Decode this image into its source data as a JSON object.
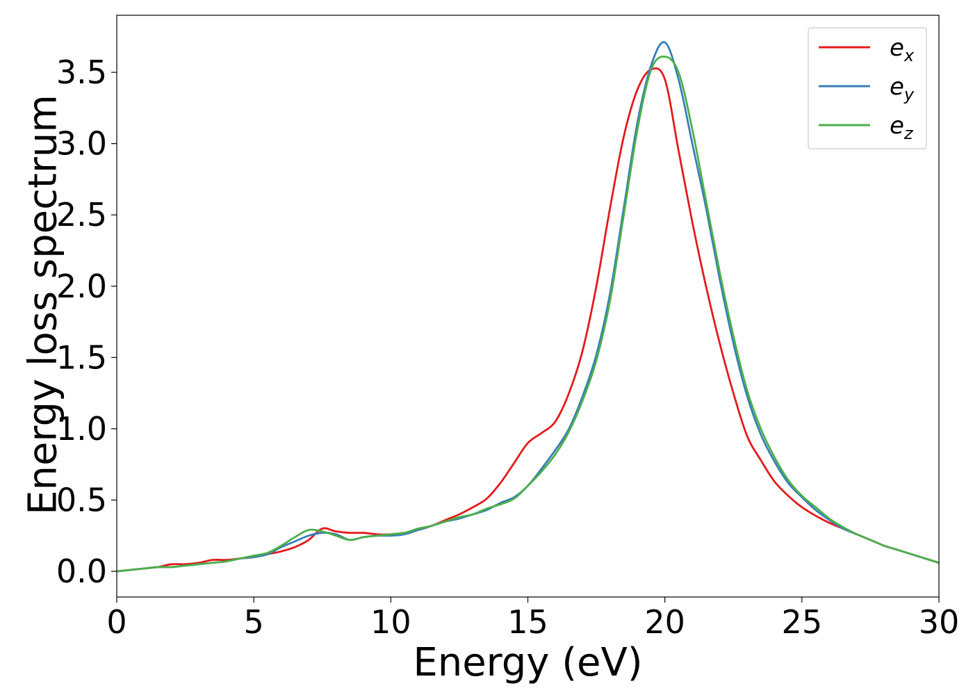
{
  "chart_data": {
    "type": "line",
    "title": "",
    "xlabel": "Energy (eV)",
    "ylabel": "Energy loss spectrum",
    "xlim": [
      0,
      30
    ],
    "ylim": [
      -0.18,
      3.9
    ],
    "xticks": [
      0,
      5,
      10,
      15,
      20,
      25,
      30
    ],
    "xtick_labels": [
      "0",
      "5",
      "10",
      "15",
      "20",
      "25",
      "30"
    ],
    "yticks": [
      0.0,
      0.5,
      1.0,
      1.5,
      2.0,
      2.5,
      3.0,
      3.5
    ],
    "ytick_labels": [
      "0.0",
      "0.5",
      "1.0",
      "1.5",
      "2.0",
      "2.5",
      "3.0",
      "3.5"
    ],
    "grid": false,
    "legend_position": "top-right",
    "series": [
      {
        "name": "e_x",
        "legend_base": "e",
        "legend_sub": "x",
        "color": "#e41a1c",
        "x": [
          0,
          1,
          1.5,
          2,
          2.5,
          3,
          3.5,
          4,
          4.5,
          5,
          5.5,
          6,
          6.5,
          7,
          7.5,
          8,
          8.5,
          9,
          9.5,
          10,
          10.5,
          11,
          11.5,
          12,
          12.5,
          13,
          13.5,
          14,
          14.5,
          15,
          15.5,
          16,
          16.5,
          17,
          17.5,
          18,
          18.5,
          19,
          19.5,
          20,
          20.5,
          21,
          21.5,
          22,
          22.5,
          23,
          23.5,
          24,
          24.5,
          25,
          25.5,
          26,
          26.5,
          27,
          27.5,
          28,
          28.5,
          29,
          29.5,
          30
        ],
        "y": [
          0.0,
          0.02,
          0.03,
          0.05,
          0.05,
          0.06,
          0.08,
          0.08,
          0.09,
          0.1,
          0.12,
          0.14,
          0.17,
          0.22,
          0.3,
          0.28,
          0.27,
          0.27,
          0.26,
          0.26,
          0.27,
          0.29,
          0.32,
          0.36,
          0.4,
          0.45,
          0.51,
          0.62,
          0.76,
          0.9,
          0.97,
          1.05,
          1.25,
          1.55,
          2.0,
          2.55,
          3.05,
          3.38,
          3.52,
          3.45,
          2.95,
          2.45,
          2.0,
          1.6,
          1.25,
          0.95,
          0.78,
          0.63,
          0.53,
          0.45,
          0.39,
          0.34,
          0.3,
          0.26,
          0.22,
          0.18,
          0.15,
          0.12,
          0.09,
          0.06
        ]
      },
      {
        "name": "e_y",
        "legend_base": "e",
        "legend_sub": "y",
        "color": "#377eb8",
        "x": [
          0,
          1,
          1.5,
          2,
          2.5,
          3,
          3.5,
          4,
          4.5,
          5,
          5.5,
          6,
          6.5,
          7,
          7.5,
          8,
          8.5,
          9,
          9.5,
          10,
          10.5,
          11,
          11.5,
          12,
          12.5,
          13,
          13.5,
          14,
          14.5,
          15,
          15.5,
          16,
          16.5,
          17,
          17.5,
          18,
          18.5,
          19,
          19.5,
          20,
          20.5,
          21,
          21.5,
          22,
          22.5,
          23,
          23.5,
          24,
          24.5,
          25,
          25.5,
          26,
          26.5,
          27,
          27.5,
          28,
          28.5,
          29,
          29.5,
          30
        ],
        "y": [
          0.0,
          0.02,
          0.03,
          0.03,
          0.04,
          0.05,
          0.06,
          0.07,
          0.09,
          0.1,
          0.12,
          0.17,
          0.21,
          0.25,
          0.27,
          0.26,
          0.22,
          0.24,
          0.25,
          0.25,
          0.26,
          0.29,
          0.32,
          0.35,
          0.37,
          0.4,
          0.43,
          0.48,
          0.52,
          0.6,
          0.72,
          0.85,
          1.0,
          1.23,
          1.52,
          1.95,
          2.55,
          3.15,
          3.55,
          3.71,
          3.45,
          3.0,
          2.55,
          2.05,
          1.6,
          1.23,
          0.96,
          0.77,
          0.62,
          0.52,
          0.43,
          0.36,
          0.3,
          0.26,
          0.22,
          0.18,
          0.15,
          0.12,
          0.09,
          0.06
        ]
      },
      {
        "name": "e_z",
        "legend_base": "e",
        "legend_sub": "z",
        "color": "#4daf4a",
        "x": [
          0,
          1,
          1.5,
          2,
          2.5,
          3,
          3.5,
          4,
          4.5,
          5,
          5.5,
          6,
          6.5,
          7,
          7.5,
          8,
          8.5,
          9,
          9.5,
          10,
          10.5,
          11,
          11.5,
          12,
          12.5,
          13,
          13.5,
          14,
          14.5,
          15,
          15.5,
          16,
          16.5,
          17,
          17.5,
          18,
          18.5,
          19,
          19.5,
          20,
          20.5,
          21,
          21.5,
          22,
          22.5,
          23,
          23.5,
          24,
          24.5,
          25,
          25.5,
          26,
          26.5,
          27,
          27.5,
          28,
          28.5,
          29,
          29.5,
          30
        ],
        "y": [
          0.0,
          0.02,
          0.03,
          0.03,
          0.04,
          0.05,
          0.06,
          0.07,
          0.09,
          0.11,
          0.13,
          0.18,
          0.24,
          0.29,
          0.28,
          0.25,
          0.22,
          0.24,
          0.25,
          0.26,
          0.27,
          0.3,
          0.32,
          0.35,
          0.38,
          0.4,
          0.44,
          0.47,
          0.51,
          0.6,
          0.7,
          0.82,
          0.98,
          1.2,
          1.48,
          1.9,
          2.5,
          3.1,
          3.52,
          3.61,
          3.5,
          3.1,
          2.6,
          2.1,
          1.65,
          1.27,
          1.0,
          0.8,
          0.64,
          0.53,
          0.45,
          0.37,
          0.31,
          0.26,
          0.22,
          0.18,
          0.15,
          0.12,
          0.09,
          0.06
        ]
      }
    ]
  }
}
